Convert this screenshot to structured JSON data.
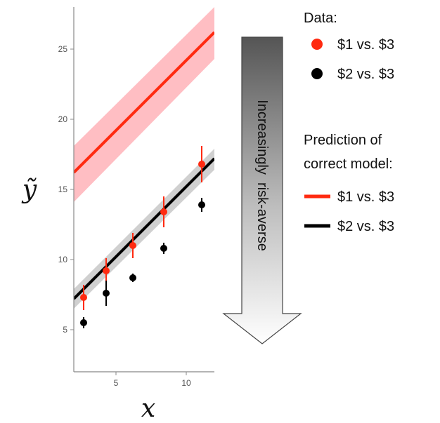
{
  "chart_data": {
    "type": "scatter",
    "xlabel": "x",
    "ylabel": "ỹ",
    "xlim": [
      2.0,
      12.0
    ],
    "ylim": [
      2.0,
      28.0
    ],
    "xticks": [
      "5",
      "10"
    ],
    "yticks": [
      "5",
      "10",
      "15",
      "20",
      "25"
    ],
    "grid": false,
    "data_series": [
      {
        "name": "$1 vs. $3",
        "color": "#ff2a10",
        "points": [
          {
            "x": 2.7,
            "y": 7.3,
            "err": 0.9
          },
          {
            "x": 4.3,
            "y": 9.2,
            "err": 0.9
          },
          {
            "x": 6.2,
            "y": 11.0,
            "err": 0.9
          },
          {
            "x": 8.4,
            "y": 13.4,
            "err": 1.1
          },
          {
            "x": 11.1,
            "y": 16.8,
            "err": 1.3
          }
        ]
      },
      {
        "name": "$2 vs. $3",
        "color": "#000000",
        "points": [
          {
            "x": 2.7,
            "y": 5.5,
            "err": 0.4
          },
          {
            "x": 4.3,
            "y": 7.6,
            "err": 0.9
          },
          {
            "x": 6.2,
            "y": 8.7,
            "err": 0.3
          },
          {
            "x": 8.4,
            "y": 10.8,
            "err": 0.4
          },
          {
            "x": 11.1,
            "y": 13.9,
            "err": 0.5
          }
        ]
      }
    ],
    "prediction_series": [
      {
        "name": "$1 vs. $3",
        "color": "#ff2a10",
        "band_color": "#ffb3b8",
        "line": [
          [
            2.0,
            16.2
          ],
          [
            12.0,
            26.2
          ]
        ],
        "band_upper": [
          [
            2.0,
            18.1
          ],
          [
            12.0,
            28.0
          ]
        ],
        "band_lower": [
          [
            2.0,
            14.1
          ],
          [
            12.0,
            24.3
          ]
        ]
      },
      {
        "name": "$2 vs. $3",
        "color": "#000000",
        "band_color": "#c8c8c8",
        "line": [
          [
            2.0,
            7.2
          ],
          [
            12.0,
            17.2
          ]
        ],
        "band_upper": [
          [
            2.0,
            7.9
          ],
          [
            12.0,
            17.9
          ]
        ],
        "band_lower": [
          [
            2.0,
            6.5
          ],
          [
            12.0,
            16.4
          ]
        ]
      }
    ]
  },
  "legend": {
    "data_title": "Data:",
    "data_items": [
      {
        "label": "$1 vs. $3",
        "color": "#ff2a10"
      },
      {
        "label": "$2 vs. $3",
        "color": "#000000"
      }
    ],
    "prediction_title_line1": "Prediction of",
    "prediction_title_line2": "correct model:",
    "prediction_items": [
      {
        "label": "$1 vs. $3",
        "color": "#ff2a10"
      },
      {
        "label": "$2 vs. $3",
        "color": "#000000"
      }
    ]
  },
  "arrow": {
    "label": "Increasingly  risk-averse"
  }
}
